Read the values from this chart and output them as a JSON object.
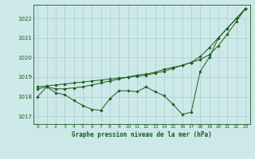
{
  "xlabel": "Graphe pression niveau de la mer (hPa)",
  "background_color": "#cce8e8",
  "grid_color": "#aacccc",
  "line_color": "#1a5c1a",
  "x": [
    0,
    1,
    2,
    3,
    4,
    5,
    6,
    7,
    8,
    9,
    10,
    11,
    12,
    13,
    14,
    15,
    16,
    17,
    18,
    19,
    20,
    21,
    22,
    23
  ],
  "line1": [
    1018.0,
    1018.5,
    1018.2,
    1018.1,
    1017.8,
    1017.55,
    1017.35,
    1017.3,
    1017.9,
    1018.3,
    1018.3,
    1018.25,
    1018.5,
    1018.25,
    1018.05,
    1017.6,
    1017.1,
    1017.2,
    1019.3,
    1020.0,
    1021.0,
    1021.5,
    1022.0,
    1022.5
  ],
  "line2": [
    1018.4,
    1018.5,
    1018.4,
    1018.4,
    1018.45,
    1018.5,
    1018.6,
    1018.7,
    1018.8,
    1018.9,
    1019.0,
    1019.1,
    1019.15,
    1019.25,
    1019.4,
    1019.5,
    1019.6,
    1019.75,
    1020.05,
    1020.5,
    1021.0,
    1021.5,
    1022.0,
    1022.5
  ],
  "line3": [
    1018.5,
    1018.55,
    1018.6,
    1018.65,
    1018.7,
    1018.75,
    1018.8,
    1018.85,
    1018.9,
    1018.95,
    1019.0,
    1019.05,
    1019.1,
    1019.2,
    1019.3,
    1019.45,
    1019.6,
    1019.75,
    1019.9,
    1020.15,
    1020.6,
    1021.2,
    1021.85,
    1022.5
  ],
  "ylim": [
    1016.6,
    1022.7
  ],
  "yticks": [
    1017,
    1018,
    1019,
    1020,
    1021,
    1022
  ],
  "xticks": [
    0,
    1,
    2,
    3,
    4,
    5,
    6,
    7,
    8,
    9,
    10,
    11,
    12,
    13,
    14,
    15,
    16,
    17,
    18,
    19,
    20,
    21,
    22,
    23
  ]
}
